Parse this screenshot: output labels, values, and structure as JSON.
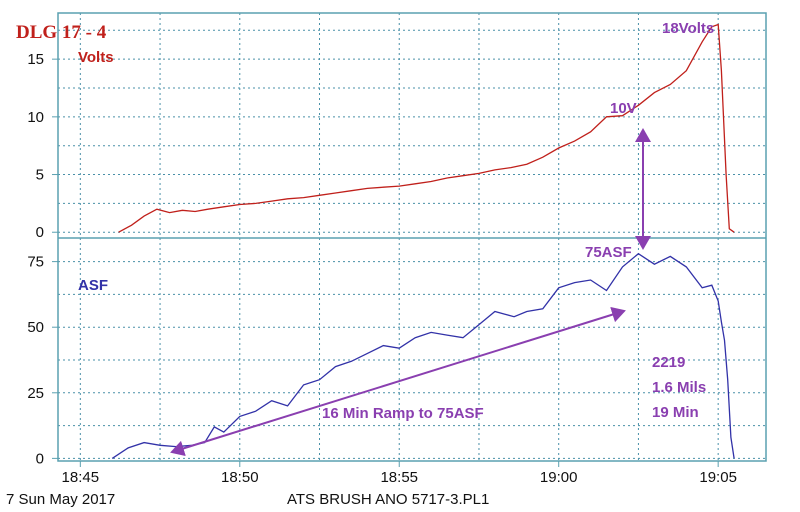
{
  "chart_data": {
    "type": "line",
    "title": "DLG 17 - 4",
    "footer_date": "7 Sun May 2017",
    "footer_file": "ATS BRUSH ANO 5717-3.PL1",
    "colors": {
      "volts": "#c0201b",
      "asf": "#3232a8",
      "annotation": "#8a3fb0",
      "grid": "#4a90a8",
      "axis": "#5aa0b0"
    },
    "x_axis": {
      "ticks": [
        "18:45",
        "18:50",
        "18:55",
        "19:00",
        "19:05"
      ],
      "tick_minutes": [
        0,
        5,
        10,
        15,
        20
      ],
      "range_minutes": [
        -0.7,
        21.5
      ],
      "grid_step_minutes": 2.5
    },
    "panels": [
      {
        "name": "Volts",
        "ylim": [
          -0.5,
          19
        ],
        "yticks": [
          0,
          5,
          10,
          15
        ],
        "grid_step": 2.5,
        "x_minutes": [
          1.2,
          1.6,
          2.0,
          2.4,
          2.8,
          3.2,
          3.6,
          4.0,
          4.5,
          5.0,
          5.5,
          6.0,
          6.5,
          7.0,
          7.5,
          8.0,
          8.5,
          9.0,
          9.5,
          10.0,
          10.5,
          11.0,
          11.5,
          12.0,
          12.5,
          13.0,
          13.5,
          14.0,
          14.5,
          15.0,
          15.5,
          16.0,
          16.5,
          17.0,
          17.5,
          18.0,
          18.5,
          19.0,
          19.5,
          19.8,
          20.0,
          20.1,
          20.25,
          20.35,
          20.5
        ],
        "values": [
          0.0,
          0.6,
          1.4,
          2.0,
          1.7,
          1.9,
          1.8,
          2.0,
          2.2,
          2.4,
          2.5,
          2.7,
          2.9,
          3.0,
          3.2,
          3.4,
          3.6,
          3.8,
          3.9,
          4.0,
          4.2,
          4.4,
          4.7,
          4.9,
          5.1,
          5.4,
          5.6,
          5.9,
          6.5,
          7.3,
          7.9,
          8.7,
          10.0,
          10.1,
          11.0,
          12.1,
          12.8,
          14.0,
          16.5,
          17.8,
          18.0,
          14.0,
          5.0,
          0.3,
          0.0
        ],
        "annotations": [
          "10V",
          "18Volts"
        ]
      },
      {
        "name": "ASF",
        "ylim": [
          -1,
          84
        ],
        "yticks": [
          0,
          25,
          50,
          75
        ],
        "grid_step": 12.5,
        "x_minutes": [
          1.0,
          1.5,
          2.0,
          2.5,
          3.0,
          3.5,
          3.9,
          4.2,
          4.5,
          5.0,
          5.5,
          6.0,
          6.5,
          7.0,
          7.5,
          8.0,
          8.5,
          9.0,
          9.5,
          10.0,
          10.5,
          11.0,
          11.5,
          12.0,
          12.5,
          13.0,
          13.3,
          13.6,
          14.0,
          14.5,
          15.0,
          15.5,
          16.0,
          16.5,
          17.0,
          17.5,
          18.0,
          18.5,
          19.0,
          19.5,
          19.8,
          20.0,
          20.1,
          20.2,
          20.3,
          20.4,
          20.5
        ],
        "values": [
          0.0,
          4.0,
          6.0,
          5.0,
          4.5,
          5.0,
          6.0,
          12.0,
          10.0,
          16.0,
          18.0,
          22.0,
          20.0,
          28.0,
          30.0,
          35.0,
          37.0,
          40.0,
          43.0,
          42.0,
          46.0,
          48.0,
          47.0,
          46.0,
          51.0,
          56.0,
          55.0,
          54.0,
          56.0,
          57.0,
          65.0,
          67.0,
          68.0,
          64.0,
          73.0,
          78.0,
          74.0,
          77.0,
          73.0,
          65.0,
          66.0,
          60.0,
          52.0,
          45.0,
          30.0,
          8.0,
          0.0
        ],
        "annotations": [
          "75ASF",
          "16 Min Ramp to 75ASF",
          "2219",
          "1.6 Mils",
          "19 Min"
        ]
      }
    ]
  }
}
